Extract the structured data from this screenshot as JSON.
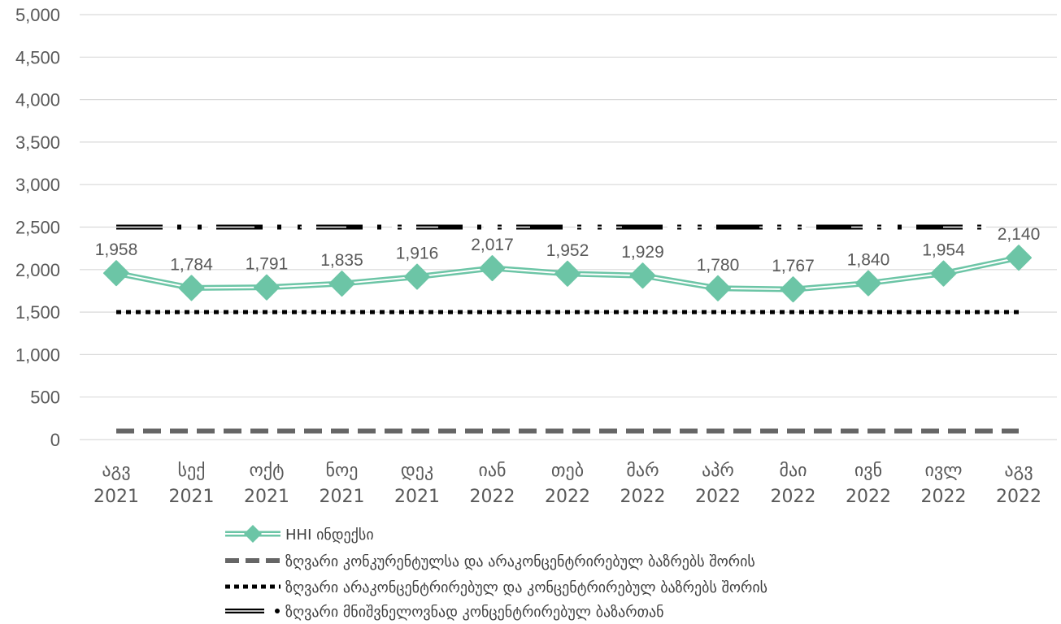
{
  "chart_data": {
    "type": "line",
    "title": "",
    "xlabel": "",
    "ylabel": "",
    "ylim": [
      0,
      5000
    ],
    "yticks": [
      "0",
      "500",
      "1,000",
      "1,500",
      "2,000",
      "2,500",
      "3,000",
      "3,500",
      "4,000",
      "4,500",
      "5,000"
    ],
    "ytick_values": [
      0,
      500,
      1000,
      1500,
      2000,
      2500,
      3000,
      3500,
      4000,
      4500,
      5000
    ],
    "grid": "horizontal",
    "legend_position": "bottom",
    "categories": [
      [
        "აგვ",
        "2021"
      ],
      [
        "სექ",
        "2021"
      ],
      [
        "ოქტ",
        "2021"
      ],
      [
        "ნოე",
        "2021"
      ],
      [
        "დეკ",
        "2021"
      ],
      [
        "იან",
        "2022"
      ],
      [
        "თებ",
        "2022"
      ],
      [
        "მარ",
        "2022"
      ],
      [
        "აპრ",
        "2022"
      ],
      [
        "მაი",
        "2022"
      ],
      [
        "ივნ",
        "2022"
      ],
      [
        "ივლ",
        "2022"
      ],
      [
        "აგვ",
        "2022"
      ]
    ],
    "series": [
      {
        "name": "HHI ინდექსი",
        "color": "#6cc5a6",
        "style": "double-line-diamond",
        "values": [
          1958,
          1784,
          1791,
          1835,
          1916,
          2017,
          1952,
          1929,
          1780,
          1767,
          1840,
          1954,
          2140
        ],
        "labels": [
          "1,958",
          "1,784",
          "1,791",
          "1,835",
          "1,916",
          "2,017",
          "1,952",
          "1,929",
          "1,780",
          "1,767",
          "1,840",
          "1,954",
          "2,140"
        ]
      },
      {
        "name": "ზღვარი კონკურენტულსა და არაკონცენტრირებულ ბაზრებს შორის",
        "color": "#666666",
        "style": "long-dash",
        "values": [
          100,
          100,
          100,
          100,
          100,
          100,
          100,
          100,
          100,
          100,
          100,
          100,
          100
        ]
      },
      {
        "name": "ზღვარი არაკონცენტრირებულ და კონცენტრირებულ ბაზრებს შორის",
        "color": "#000000",
        "style": "round-dot",
        "values": [
          1500,
          1500,
          1500,
          1500,
          1500,
          1500,
          1500,
          1500,
          1500,
          1500,
          1500,
          1500,
          1500
        ]
      },
      {
        "name": "ზღვარი მნიშვნელოვნად კონცენტრირებულ ბაზართან",
        "color": "#000000",
        "style": "double-dash-dot",
        "values": [
          2500,
          2500,
          2500,
          2500,
          2500,
          2500,
          2500,
          2500,
          2500,
          2500,
          2500,
          2500,
          2500
        ]
      }
    ]
  }
}
